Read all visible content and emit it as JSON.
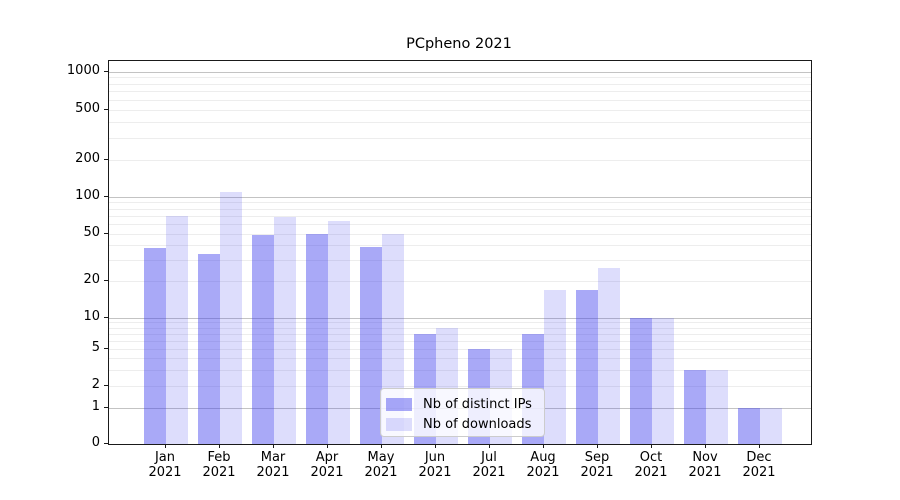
{
  "chart_data": {
    "type": "bar",
    "title": "PCpheno 2021",
    "categories": [
      "Jan 2021",
      "Feb 2021",
      "Mar 2021",
      "Apr 2021",
      "May 2021",
      "Jun 2021",
      "Jul 2021",
      "Aug 2021",
      "Sep 2021",
      "Oct 2021",
      "Nov 2021",
      "Dec 2021"
    ],
    "series": [
      {
        "name": "Nb of distinct IPs",
        "values": [
          38,
          34,
          49,
          50,
          39,
          7,
          5,
          7,
          17,
          10,
          3,
          1
        ]
      },
      {
        "name": "Nb of downloads",
        "values": [
          70,
          108,
          68,
          63,
          50,
          8,
          5,
          17,
          26,
          10,
          3,
          1
        ]
      }
    ],
    "xlabel": "",
    "ylabel": "",
    "yaxis": {
      "scale": "log-like",
      "ticks": [
        0,
        1,
        2,
        5,
        10,
        20,
        50,
        100,
        200,
        500,
        1000
      ],
      "major_gridline_values": [
        1,
        10,
        100,
        1000
      ],
      "grid": "on"
    },
    "legend": {
      "position": "inside-lower-center"
    }
  },
  "colors": {
    "bar_distinct_ips": "rgba(64,64,238,0.45)",
    "bar_downloads": "rgba(64,64,238,0.175)",
    "accent_base": "#4040ee",
    "grid_major": "#c3c3c3",
    "grid_minor": "#ededed",
    "axis_spine": "#1a1a1a",
    "text": "#000000",
    "legend_border": "#cccccc"
  }
}
